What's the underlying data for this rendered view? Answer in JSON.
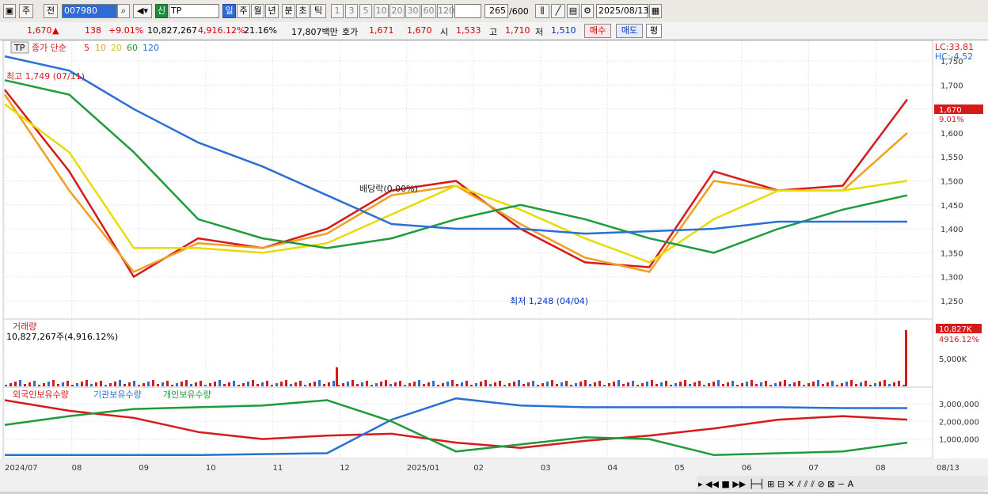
{
  "toolbar": {
    "period_tab": "주",
    "prev_tab": "전",
    "code": "007980",
    "badge": "신",
    "name": "TP",
    "periods": [
      "일",
      "주",
      "월",
      "년",
      "분",
      "초",
      "틱"
    ],
    "minutes": [
      "1",
      "3",
      "5",
      "10",
      "20",
      "30",
      "60",
      "120"
    ],
    "count": "265",
    "count_total": "/600",
    "date": "2025/08/13"
  },
  "quote": {
    "price": "1,670",
    "arrow": "▲",
    "change": "138",
    "change_pct": "+9.01%",
    "volume": "10,827,267",
    "volume_pct": "4,916.12%",
    "turnover": "21.16%",
    "amount": "17,807백만",
    "bid_label": "호가",
    "bid1": "1,671",
    "bid2": "1,670",
    "open_label": "시",
    "open": "1,533",
    "high_label": "고",
    "high": "1,710",
    "low_label": "저",
    "low": "1,510",
    "buy": "매수",
    "sell": "매도",
    "avg": "평"
  },
  "price_panel": {
    "ticker_tag": "TP",
    "legend_prefix": "종가 단순",
    "ma": [
      {
        "label": "5",
        "color": "#d61a1a"
      },
      {
        "label": "10",
        "color": "#f0a020"
      },
      {
        "label": "20",
        "color": "#e6dc00"
      },
      {
        "label": "60",
        "color": "#1f9a3c"
      },
      {
        "label": "120",
        "color": "#2a6fd6"
      }
    ],
    "lc": "LC:33.81",
    "hc": "HC:-4.52",
    "current_tag": "1,670",
    "current_pct": "9.01%",
    "high_note": "최고 1,749 (07/11)",
    "low_note": "최저 1,248 (04/04)",
    "dividend_note": "배당락(0.00%)",
    "y_ticks": [
      "1,750",
      "1,700",
      "1,650",
      "1,600",
      "1,550",
      "1,500",
      "1,450",
      "1,400",
      "1,350",
      "1,300",
      "1,250"
    ]
  },
  "volume_panel": {
    "title": "거래량",
    "value_note": "10,827,267주(4,916.12%)",
    "tag": "10,827K",
    "tag_pct": "4916.12%",
    "tick": "5,000K"
  },
  "holder_panel": {
    "legend": [
      {
        "label": "외국인보유수량",
        "color": "#d61a1a"
      },
      {
        "label": "기관보유수량",
        "color": "#2a6fd6"
      },
      {
        "label": "개인보유수량",
        "color": "#1f9a3c"
      }
    ],
    "y_ticks": [
      "3,000,000",
      "2,000,000",
      "1,000,000"
    ]
  },
  "x_axis": [
    "2024/07",
    "08",
    "09",
    "10",
    "11",
    "12",
    "2025/01",
    "02",
    "03",
    "04",
    "05",
    "06",
    "07",
    "08"
  ],
  "x_axis_right": "08/13",
  "chart_data": {
    "type": "line",
    "ylim": [
      1225,
      1770
    ],
    "x": [
      "2024/07",
      "08",
      "09",
      "10",
      "11",
      "12",
      "2025/01",
      "02",
      "03",
      "04",
      "05",
      "06",
      "07",
      "08",
      "08/13"
    ],
    "series": [
      {
        "name": "5",
        "values": [
          1690,
          1520,
          1300,
          1380,
          1360,
          1400,
          1480,
          1500,
          1400,
          1330,
          1320,
          1520,
          1480,
          1490,
          1670
        ]
      },
      {
        "name": "10",
        "values": [
          1680,
          1480,
          1310,
          1370,
          1360,
          1390,
          1470,
          1490,
          1410,
          1340,
          1310,
          1500,
          1480,
          1480,
          1600
        ]
      },
      {
        "name": "20",
        "values": [
          1660,
          1560,
          1360,
          1360,
          1350,
          1370,
          1430,
          1490,
          1440,
          1380,
          1330,
          1420,
          1480,
          1480,
          1500
        ]
      },
      {
        "name": "60",
        "values": [
          1710,
          1680,
          1560,
          1420,
          1380,
          1360,
          1380,
          1420,
          1450,
          1420,
          1380,
          1350,
          1400,
          1440,
          1470
        ]
      },
      {
        "name": "120",
        "values": [
          1760,
          1730,
          1650,
          1580,
          1530,
          1470,
          1410,
          1400,
          1400,
          1390,
          1395,
          1400,
          1415,
          1415,
          1415
        ]
      }
    ],
    "holdings": [
      {
        "name": "외국인보유수량",
        "values": [
          3200000,
          2600000,
          2200000,
          1400000,
          1000000,
          1200000,
          1300000,
          800000,
          500000,
          900000,
          1200000,
          1600000,
          2100000,
          2300000,
          2100000
        ]
      },
      {
        "name": "기관보유수량",
        "values": [
          100000,
          100000,
          100000,
          100000,
          150000,
          200000,
          2100000,
          3300000,
          2900000,
          2800000,
          2800000,
          2800000,
          2800000,
          2750000,
          2750000
        ]
      },
      {
        "name": "개인보유수량",
        "values": [
          1800000,
          2300000,
          2700000,
          2800000,
          2900000,
          3200000,
          2000000,
          300000,
          700000,
          1100000,
          1000000,
          100000,
          200000,
          300000,
          800000
        ]
      }
    ]
  }
}
